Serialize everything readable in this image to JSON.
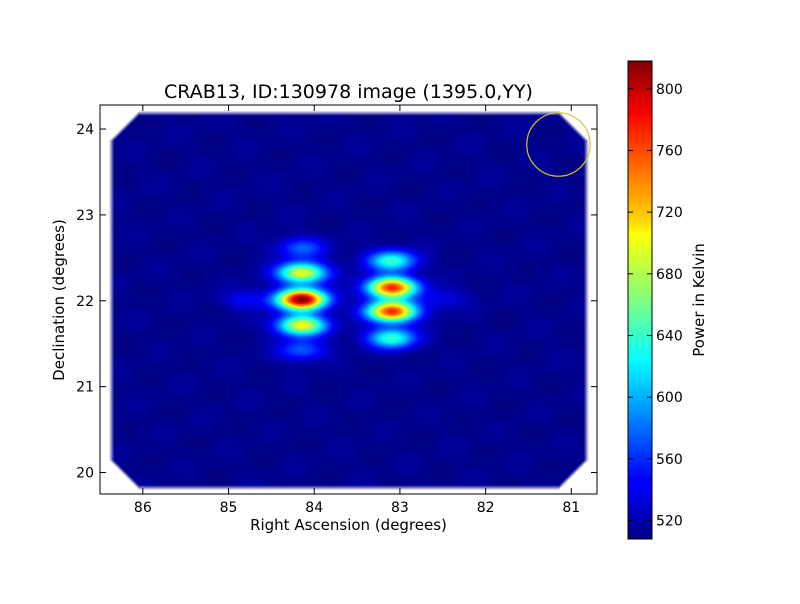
{
  "chart_data": {
    "type": "heatmap",
    "title": "CRAB13, ID:130978 image (1395.0,YY)",
    "xlabel": "Right Ascension (degrees)",
    "ylabel": "Declination (degrees)",
    "xlim": [
      86.5,
      80.7
    ],
    "ylim": [
      19.75,
      24.28
    ],
    "x_ticks": [
      86,
      85,
      84,
      83,
      82,
      81
    ],
    "y_ticks": [
      20,
      21,
      22,
      23,
      24
    ],
    "colorbar": {
      "label": "Power in Kelvin",
      "range": [
        508,
        818
      ],
      "ticks": [
        520,
        560,
        600,
        640,
        680,
        720,
        760,
        800
      ],
      "colormap": "jet"
    },
    "background_level": 512,
    "sources": [
      {
        "ra": 84.15,
        "dec": 22.02,
        "peak": 818
      },
      {
        "ra": 84.15,
        "dec": 22.33,
        "peak": 700
      },
      {
        "ra": 84.15,
        "dec": 21.72,
        "peak": 700
      },
      {
        "ra": 84.15,
        "dec": 22.62,
        "peak": 575
      },
      {
        "ra": 84.15,
        "dec": 21.43,
        "peak": 575
      },
      {
        "ra": 83.1,
        "dec": 22.16,
        "peak": 770
      },
      {
        "ra": 83.1,
        "dec": 21.88,
        "peak": 770
      },
      {
        "ra": 83.1,
        "dec": 22.47,
        "peak": 640
      },
      {
        "ra": 83.1,
        "dec": 21.57,
        "peak": 640
      },
      {
        "ra": 84.8,
        "dec": 22.02,
        "peak": 545
      },
      {
        "ra": 82.5,
        "dec": 22.02,
        "peak": 540
      }
    ],
    "beam_marker": {
      "ra": 81.15,
      "dec": 23.82,
      "radius_deg": 0.37,
      "color": "#d4c52a"
    }
  }
}
